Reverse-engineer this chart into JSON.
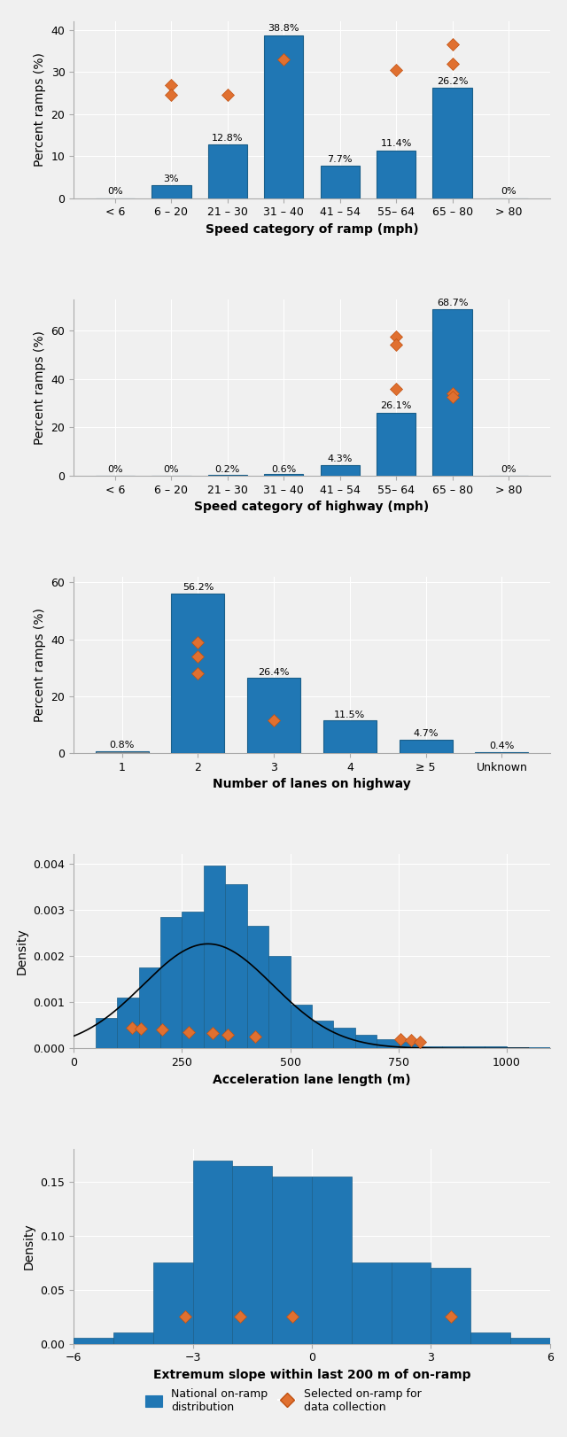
{
  "bar_color": "#2077b4",
  "bar_edge_color": "#1a5f8a",
  "diamond_color": "#e07030",
  "diamond_edge_color": "#c05010",
  "figure_background": "#f0f0f0",
  "plot1": {
    "categories": [
      "< 6",
      "6 – 20",
      "21 – 30",
      "31 – 40",
      "41 – 54",
      "55– 64",
      "65 – 80",
      "> 80"
    ],
    "values": [
      0.0,
      3.0,
      12.8,
      38.8,
      7.7,
      11.4,
      26.2,
      0.0
    ],
    "labels": [
      "0%",
      "3%",
      "12.8%",
      "38.8%",
      "7.7%",
      "11.4%",
      "26.2%",
      "0%"
    ],
    "diamond_points": [
      [
        1,
        27.0
      ],
      [
        1,
        24.5
      ],
      [
        2,
        24.5
      ],
      [
        3,
        33.0
      ],
      [
        5,
        30.5
      ],
      [
        6,
        36.5
      ],
      [
        6,
        32.0
      ]
    ],
    "ylabel": "Percent ramps (%)",
    "xlabel": "Speed category of ramp (mph)",
    "ylim": [
      0,
      42
    ]
  },
  "plot2": {
    "categories": [
      "< 6",
      "6 – 20",
      "21 – 30",
      "31 – 40",
      "41 – 54",
      "55– 64",
      "65 – 80",
      "> 80"
    ],
    "values": [
      0.0,
      0.0,
      0.2,
      0.6,
      4.3,
      26.1,
      68.7,
      0.0
    ],
    "labels": [
      "0%",
      "0%",
      "0.2%",
      "0.6%",
      "4.3%",
      "26.1%",
      "68.7%",
      "0%"
    ],
    "diamond_points": [
      [
        5,
        57.5
      ],
      [
        5,
        54.0
      ],
      [
        5,
        36.0
      ],
      [
        6,
        34.0
      ],
      [
        6,
        32.5
      ]
    ],
    "ylabel": "Percent ramps (%)",
    "xlabel": "Speed category of highway (mph)",
    "ylim": [
      0,
      73
    ]
  },
  "plot3": {
    "categories": [
      "1",
      "2",
      "3",
      "4",
      "≥ 5",
      "Unknown"
    ],
    "values": [
      0.8,
      56.2,
      26.4,
      11.5,
      4.7,
      0.4
    ],
    "labels": [
      "0.8%",
      "56.2%",
      "26.4%",
      "11.5%",
      "4.7%",
      "0.4%"
    ],
    "bar_colors_override": [
      "#888888",
      "#2077b4",
      "#2077b4",
      "#2077b4",
      "#2077b4",
      "#888888"
    ],
    "diamond_points": [
      [
        1,
        39.0
      ],
      [
        1,
        34.0
      ],
      [
        1,
        28.0
      ],
      [
        2,
        11.5
      ]
    ],
    "ylabel": "Percent ramps (%)",
    "xlabel": "Number of lanes on highway",
    "ylim": [
      0,
      62
    ]
  },
  "plot4": {
    "bin_edges": [
      0,
      50,
      100,
      150,
      200,
      250,
      300,
      350,
      400,
      450,
      500,
      550,
      600,
      650,
      700,
      750,
      800,
      850,
      900,
      950,
      1000,
      1050,
      1100
    ],
    "bin_heights": [
      0.0,
      0.00065,
      0.0011,
      0.00175,
      0.00285,
      0.00295,
      0.00395,
      0.00355,
      0.00265,
      0.002,
      0.00095,
      0.0006,
      0.00045,
      0.0003,
      0.0002,
      0.00015,
      5e-05,
      5e-05,
      5e-05,
      5e-05,
      3e-05,
      2e-05
    ],
    "density_curve": {
      "mu": 310,
      "sigma": 150,
      "scale": 0.85
    },
    "diamond_points": [
      [
        135,
        0.00045
      ],
      [
        155,
        0.00042
      ],
      [
        205,
        0.0004
      ],
      [
        265,
        0.00035
      ],
      [
        320,
        0.00033
      ],
      [
        355,
        0.0003
      ],
      [
        420,
        0.00025
      ],
      [
        755,
        0.0002
      ],
      [
        780,
        0.00017
      ],
      [
        800,
        0.00015
      ]
    ],
    "ylabel": "Density",
    "xlabel": "Acceleration lane length (m)",
    "ylim": [
      0,
      0.0042
    ],
    "xlim": [
      0,
      1100
    ]
  },
  "plot5": {
    "bin_edges": [
      -6,
      -5,
      -4,
      -3,
      -2,
      -1,
      0,
      1,
      2,
      3,
      4,
      5,
      6
    ],
    "bin_heights": [
      0.005,
      0.01,
      0.075,
      0.17,
      0.165,
      0.155,
      0.155,
      0.075,
      0.075,
      0.07,
      0.01,
      0.005
    ],
    "diamond_points": [
      [
        -3.2,
        0.025
      ],
      [
        -1.8,
        0.025
      ],
      [
        -0.5,
        0.025
      ],
      [
        3.5,
        0.025
      ]
    ],
    "ylabel": "Density",
    "xlabel": "Extremum slope within last 200 m of on-ramp",
    "ylim": [
      0,
      0.18
    ],
    "xlim": [
      -6,
      6
    ]
  },
  "legend_label_bar": "National on-ramp\ndistribution",
  "legend_label_diamond": "Selected on-ramp for\ndata collection"
}
